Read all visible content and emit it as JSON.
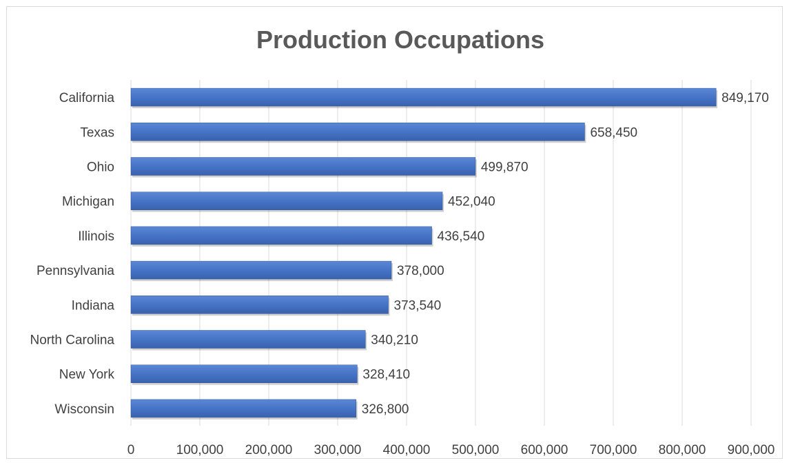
{
  "chart_data": {
    "type": "bar",
    "orientation": "horizontal",
    "title": "Production Occupations",
    "xlabel": "",
    "ylabel": "",
    "categories": [
      "California",
      "Texas",
      "Ohio",
      "Michigan",
      "Illinois",
      "Pennsylvania",
      "Indiana",
      "North Carolina",
      "New York",
      "Wisconsin"
    ],
    "values": [
      849170,
      658450,
      499870,
      452040,
      436540,
      378000,
      373540,
      340210,
      328410,
      326800
    ],
    "data_labels": [
      "849,170",
      "658,450",
      "499,870",
      "452,040",
      "436,540",
      "378,000",
      "373,540",
      "340,210",
      "328,410",
      "326,800"
    ],
    "xlim": [
      0,
      900000
    ],
    "x_ticks": [
      0,
      100000,
      200000,
      300000,
      400000,
      500000,
      600000,
      700000,
      800000,
      900000
    ],
    "x_tick_labels": [
      "0",
      "100,000",
      "200,000",
      "300,000",
      "400,000",
      "500,000",
      "600,000",
      "700,000",
      "800,000",
      "900,000"
    ],
    "grid": true,
    "legend": "none",
    "bar_color": "#4472c4",
    "bar_color_dark": "#2f5597"
  }
}
